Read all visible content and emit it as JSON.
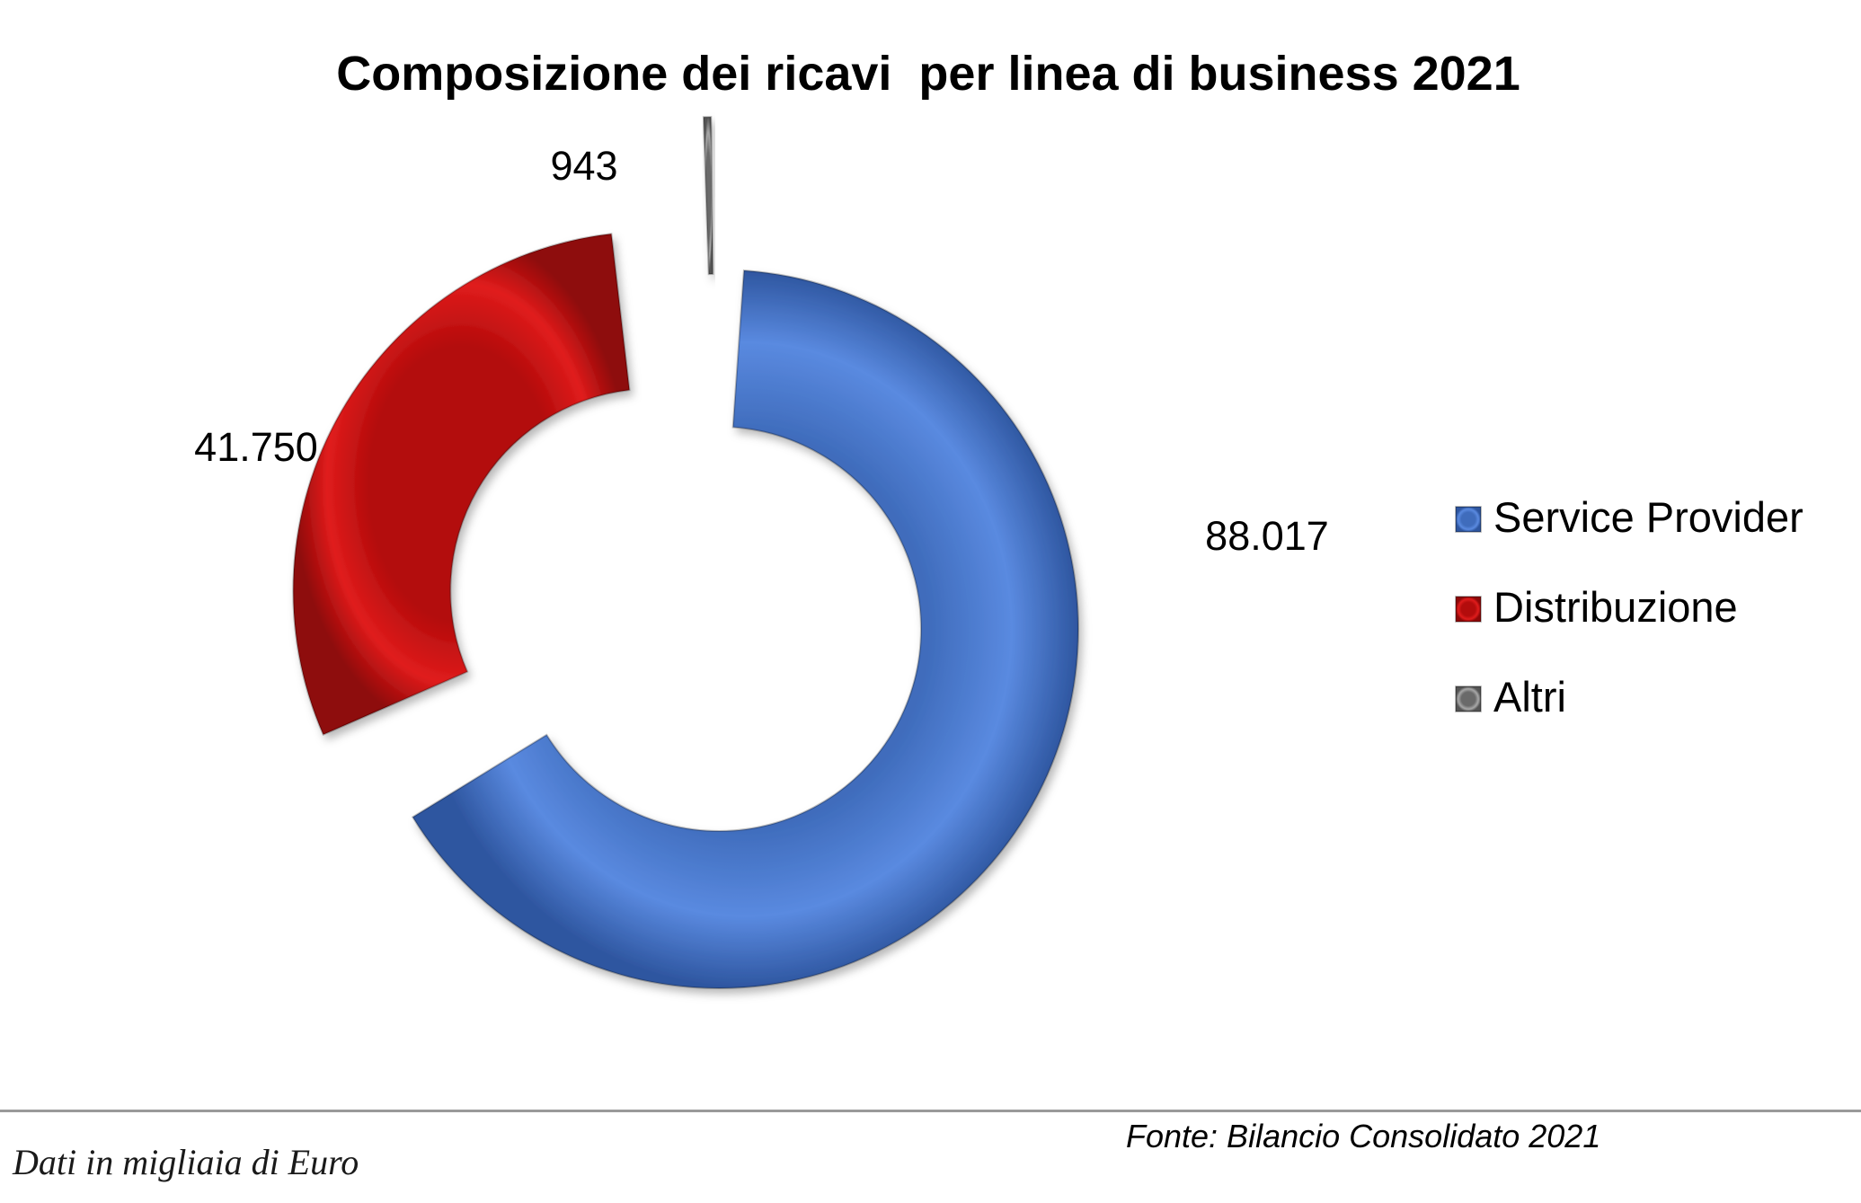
{
  "chart_data": {
    "type": "pie",
    "subtype": "exploded-donut",
    "title": "Composizione dei ricavi  per linea di business 2021",
    "categories": [
      "Service Provider",
      "Distribuzione",
      "Altri"
    ],
    "values": [
      88017,
      41750,
      943
    ],
    "value_labels": [
      "88.017",
      "41.750",
      "943"
    ],
    "colors": [
      "#4a7bd0",
      "#cc1111",
      "#8a8a8a"
    ],
    "legend": {
      "position": "right",
      "entries": [
        "Service Provider",
        "Distribuzione",
        "Altri"
      ]
    }
  },
  "footnote": "Dati in migliaia di Euro",
  "source": "Fonte: Bilancio Consolidato 2021"
}
